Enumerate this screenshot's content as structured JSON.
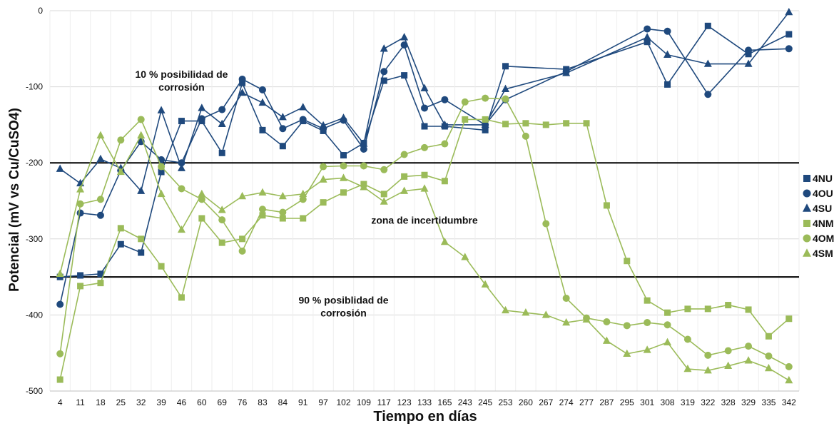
{
  "chart_data": {
    "type": "line",
    "xlabel": "Tiempo en días",
    "ylabel": "Potencial (mV vs Cu/CuSO4)",
    "ylim": [
      -500,
      0
    ],
    "yticks": [
      0,
      -100,
      -200,
      -300,
      -400,
      -500
    ],
    "grid": "horizontal",
    "legend_position": "right",
    "categories": [
      "4",
      "11",
      "18",
      "25",
      "32",
      "39",
      "46",
      "60",
      "69",
      "76",
      "83",
      "84",
      "91",
      "97",
      "102",
      "109",
      "117",
      "123",
      "133",
      "165",
      "243",
      "245",
      "253",
      "260",
      "267",
      "274",
      "277",
      "287",
      "295",
      "301",
      "308",
      "319",
      "322",
      "328",
      "329",
      "335",
      "342"
    ],
    "thresholds": [
      -200,
      -350
    ],
    "annotations": [
      {
        "text": [
          "10 % posibilidad de",
          "corrosión"
        ],
        "x_category": "46",
        "y": -88
      },
      {
        "text": [
          "zona de incertidumbre"
        ],
        "x_category": "133",
        "y": -280
      },
      {
        "text": [
          "90 % posiblidad de",
          "corrosión"
        ],
        "x_category": "102",
        "y": -385
      }
    ],
    "series": [
      {
        "name": "4NU",
        "color": "#1F497D",
        "marker": "square",
        "points": [
          [
            0,
            -350
          ],
          [
            1,
            -348
          ],
          [
            2,
            -346
          ],
          [
            3,
            -307
          ],
          [
            4,
            -318
          ],
          [
            5,
            -212
          ],
          [
            6,
            -145
          ],
          [
            7,
            -145
          ],
          [
            8,
            -187
          ],
          [
            9,
            -95
          ],
          [
            10,
            -157
          ],
          [
            11,
            -178
          ],
          [
            12,
            -145
          ],
          [
            13,
            -158
          ],
          [
            14,
            -190
          ],
          [
            15,
            -174
          ],
          [
            16,
            -92
          ],
          [
            17,
            -85
          ],
          [
            18,
            -152
          ],
          [
            19,
            -152
          ],
          [
            21,
            -157
          ],
          [
            22,
            -73
          ],
          [
            25,
            -77
          ],
          [
            29,
            -41
          ],
          [
            30,
            -97
          ],
          [
            32,
            -20
          ],
          [
            34,
            -57
          ],
          [
            36,
            -31
          ]
        ]
      },
      {
        "name": "4OU",
        "color": "#1F497D",
        "marker": "circle",
        "points": [
          [
            0,
            -386
          ],
          [
            1,
            -266
          ],
          [
            2,
            -269
          ],
          [
            3,
            -210
          ],
          [
            4,
            -172
          ],
          [
            5,
            -196
          ],
          [
            6,
            -200
          ],
          [
            7,
            -142
          ],
          [
            8,
            -130
          ],
          [
            9,
            -90
          ],
          [
            10,
            -104
          ],
          [
            11,
            -155
          ],
          [
            12,
            -143
          ],
          [
            13,
            -155
          ],
          [
            14,
            -144
          ],
          [
            15,
            -182
          ],
          [
            16,
            -80
          ],
          [
            17,
            -45
          ],
          [
            18,
            -128
          ],
          [
            19,
            -117
          ],
          [
            21,
            -150
          ],
          [
            22,
            -117
          ],
          [
            25,
            -80
          ],
          [
            29,
            -24
          ],
          [
            30,
            -27
          ],
          [
            32,
            -110
          ],
          [
            34,
            -52
          ],
          [
            36,
            -50
          ]
        ]
      },
      {
        "name": "4SU",
        "color": "#1F497D",
        "marker": "triangle",
        "points": [
          [
            0,
            -208
          ],
          [
            1,
            -227
          ],
          [
            2,
            -195
          ],
          [
            3,
            -207
          ],
          [
            4,
            -237
          ],
          [
            5,
            -131
          ],
          [
            6,
            -207
          ],
          [
            7,
            -128
          ],
          [
            8,
            -149
          ],
          [
            9,
            -108
          ],
          [
            10,
            -121
          ],
          [
            11,
            -140
          ],
          [
            12,
            -127
          ],
          [
            13,
            -151
          ],
          [
            14,
            -141
          ],
          [
            15,
            -175
          ],
          [
            16,
            -50
          ],
          [
            17,
            -35
          ],
          [
            18,
            -102
          ],
          [
            19,
            -150
          ],
          [
            21,
            -150
          ],
          [
            22,
            -103
          ],
          [
            25,
            -82
          ],
          [
            29,
            -35
          ],
          [
            30,
            -58
          ],
          [
            32,
            -70
          ],
          [
            34,
            -70
          ],
          [
            36,
            -2
          ]
        ]
      },
      {
        "name": "4NM",
        "color": "#9BBB59",
        "marker": "square",
        "points": [
          [
            0,
            -485
          ],
          [
            1,
            -362
          ],
          [
            2,
            -358
          ],
          [
            3,
            -286
          ],
          [
            4,
            -300
          ],
          [
            5,
            -336
          ],
          [
            6,
            -377
          ],
          [
            7,
            -273
          ],
          [
            8,
            -305
          ],
          [
            9,
            -300
          ],
          [
            10,
            -269
          ],
          [
            11,
            -273
          ],
          [
            12,
            -273
          ],
          [
            13,
            -252
          ],
          [
            14,
            -239
          ],
          [
            15,
            -228
          ],
          [
            16,
            -241
          ],
          [
            17,
            -218
          ],
          [
            18,
            -216
          ],
          [
            19,
            -224
          ],
          [
            20,
            -143
          ],
          [
            21,
            -143
          ],
          [
            22,
            -149
          ],
          [
            23,
            -148
          ],
          [
            24,
            -150
          ],
          [
            25,
            -148
          ],
          [
            26,
            -148
          ],
          [
            27,
            -256
          ],
          [
            28,
            -329
          ],
          [
            29,
            -381
          ],
          [
            30,
            -397
          ],
          [
            31,
            -392
          ],
          [
            32,
            -392
          ],
          [
            33,
            -387
          ],
          [
            34,
            -393
          ],
          [
            35,
            -428
          ],
          [
            36,
            -405
          ]
        ]
      },
      {
        "name": "4OM",
        "color": "#9BBB59",
        "marker": "circle",
        "points": [
          [
            0,
            -451
          ],
          [
            1,
            -254
          ],
          [
            2,
            -248
          ],
          [
            3,
            -170
          ],
          [
            4,
            -143
          ],
          [
            5,
            -205
          ],
          [
            6,
            -234
          ],
          [
            7,
            -248
          ],
          [
            8,
            -275
          ],
          [
            9,
            -316
          ],
          [
            10,
            -261
          ],
          [
            11,
            -265
          ],
          [
            12,
            -248
          ],
          [
            13,
            -205
          ],
          [
            14,
            -204
          ],
          [
            15,
            -204
          ],
          [
            16,
            -209
          ],
          [
            17,
            -189
          ],
          [
            18,
            -180
          ],
          [
            19,
            -175
          ],
          [
            20,
            -120
          ],
          [
            21,
            -115
          ],
          [
            22,
            -116
          ],
          [
            23,
            -165
          ],
          [
            24,
            -280
          ],
          [
            25,
            -378
          ],
          [
            26,
            -404
          ],
          [
            27,
            -409
          ],
          [
            28,
            -414
          ],
          [
            29,
            -410
          ],
          [
            30,
            -413
          ],
          [
            31,
            -432
          ],
          [
            32,
            -453
          ],
          [
            33,
            -447
          ],
          [
            34,
            -441
          ],
          [
            35,
            -454
          ],
          [
            36,
            -468
          ]
        ]
      },
      {
        "name": "4SM",
        "color": "#9BBB59",
        "marker": "triangle",
        "points": [
          [
            0,
            -346
          ],
          [
            1,
            -235
          ],
          [
            2,
            -164
          ],
          [
            3,
            -212
          ],
          [
            4,
            -164
          ],
          [
            5,
            -241
          ],
          [
            6,
            -288
          ],
          [
            7,
            -241
          ],
          [
            8,
            -262
          ],
          [
            9,
            -244
          ],
          [
            10,
            -239
          ],
          [
            11,
            -244
          ],
          [
            12,
            -241
          ],
          [
            13,
            -222
          ],
          [
            14,
            -220
          ],
          [
            15,
            -232
          ],
          [
            16,
            -251
          ],
          [
            17,
            -237
          ],
          [
            18,
            -234
          ],
          [
            19,
            -304
          ],
          [
            20,
            -324
          ],
          [
            21,
            -360
          ],
          [
            22,
            -394
          ],
          [
            23,
            -397
          ],
          [
            24,
            -400
          ],
          [
            25,
            -410
          ],
          [
            26,
            -406
          ],
          [
            27,
            -434
          ],
          [
            28,
            -451
          ],
          [
            29,
            -446
          ],
          [
            30,
            -436
          ],
          [
            31,
            -471
          ],
          [
            32,
            -473
          ],
          [
            33,
            -467
          ],
          [
            34,
            -460
          ],
          [
            35,
            -470
          ],
          [
            36,
            -486
          ]
        ]
      }
    ]
  }
}
